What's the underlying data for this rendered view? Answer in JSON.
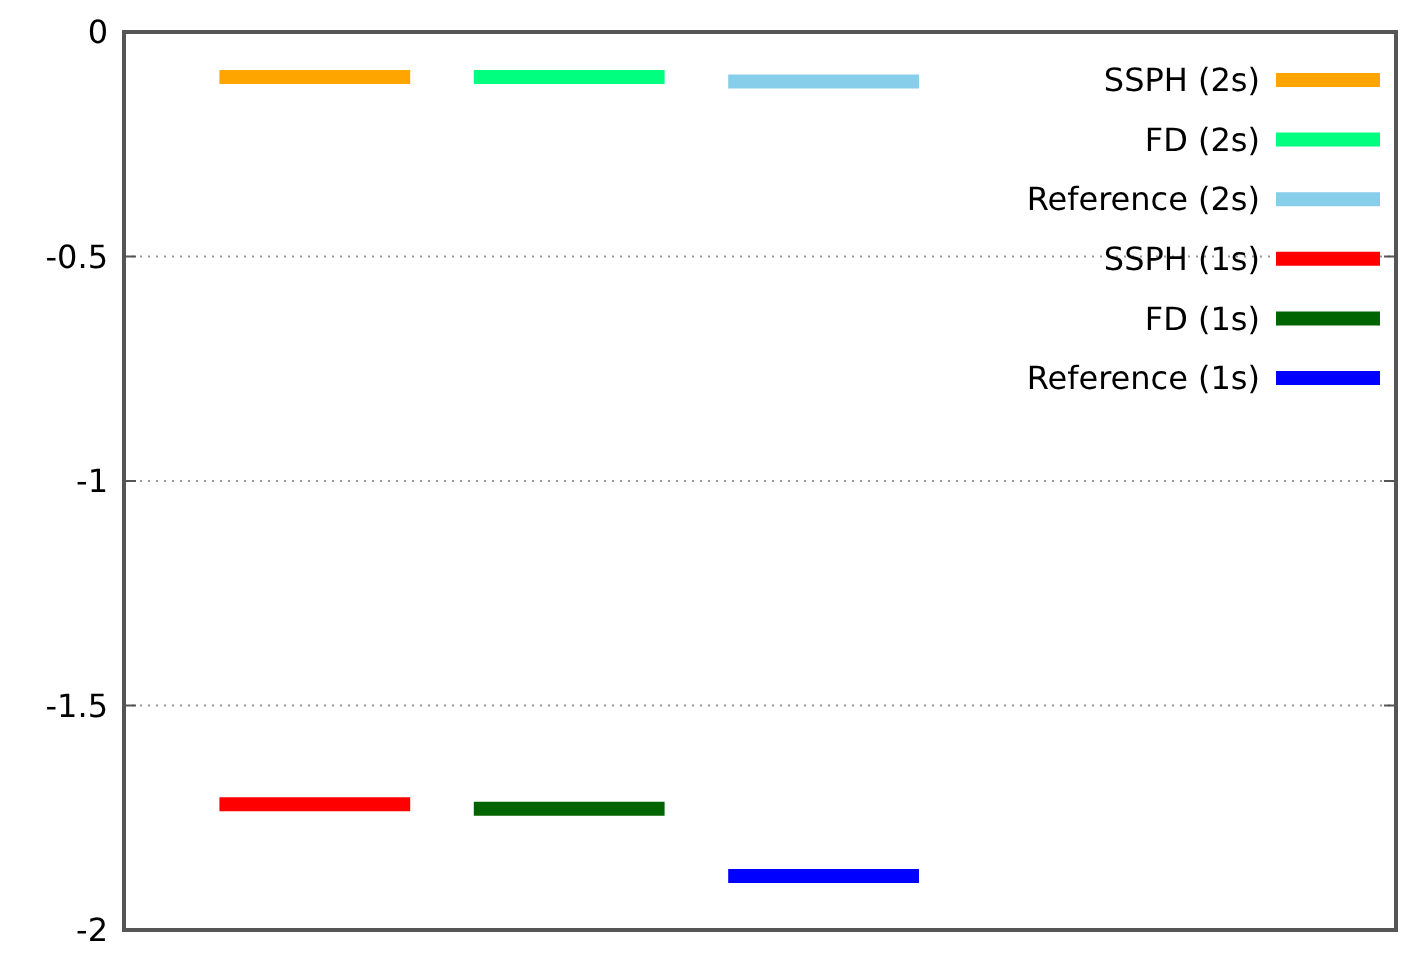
{
  "chart_data": {
    "type": "line",
    "categories": [
      null,
      null,
      null,
      null,
      null,
      null,
      null,
      null,
      null,
      null,
      null,
      null,
      null,
      null,
      null,
      null,
      null,
      null,
      null,
      null
    ],
    "ylim": [
      -2,
      0
    ],
    "yticks": [
      0,
      -0.5,
      -1,
      -1.5,
      -2
    ],
    "tick_labels": "y",
    "grid": "y",
    "legend": "top right",
    "line_style": "solid",
    "series": [
      {
        "name": "SSPH (2s)",
        "color": "#ffa500",
        "values": [
          null,
          -0.1,
          -0.1,
          -0.1,
          -0.1,
          null,
          null,
          null,
          null,
          null,
          null,
          null,
          null,
          null,
          null,
          null,
          null,
          null,
          null,
          null
        ]
      },
      {
        "name": "FD (2s)",
        "color": "#00ff7f",
        "values": [
          null,
          null,
          null,
          null,
          null,
          -0.1,
          -0.1,
          -0.1,
          -0.1,
          null,
          null,
          null,
          null,
          null,
          null,
          null,
          null,
          null,
          null,
          null
        ]
      },
      {
        "name": "Reference (2s)",
        "color": "#87ceeb",
        "values": [
          null,
          null,
          null,
          null,
          null,
          null,
          null,
          null,
          null,
          -0.11,
          -0.11,
          -0.11,
          -0.11,
          null,
          null,
          null,
          null,
          null,
          null,
          null
        ]
      },
      {
        "name": "SSPH (1s)",
        "color": "#ff0000",
        "values": [
          null,
          -1.72,
          -1.72,
          -1.72,
          -1.72,
          null,
          null,
          null,
          null,
          null,
          null,
          null,
          null,
          null,
          null,
          null,
          null,
          null,
          null,
          null
        ]
      },
      {
        "name": "FD (1s)",
        "color": "#006400",
        "values": [
          null,
          null,
          null,
          null,
          null,
          -1.73,
          -1.73,
          -1.73,
          -1.73,
          null,
          null,
          null,
          null,
          null,
          null,
          null,
          null,
          null,
          null,
          null
        ]
      },
      {
        "name": "Reference (1s)",
        "color": "#0000ff",
        "values": [
          null,
          null,
          null,
          null,
          null,
          null,
          null,
          null,
          null,
          -1.88,
          -1.88,
          -1.88,
          -1.88,
          null,
          null,
          null,
          null,
          null,
          null,
          null
        ]
      }
    ]
  }
}
